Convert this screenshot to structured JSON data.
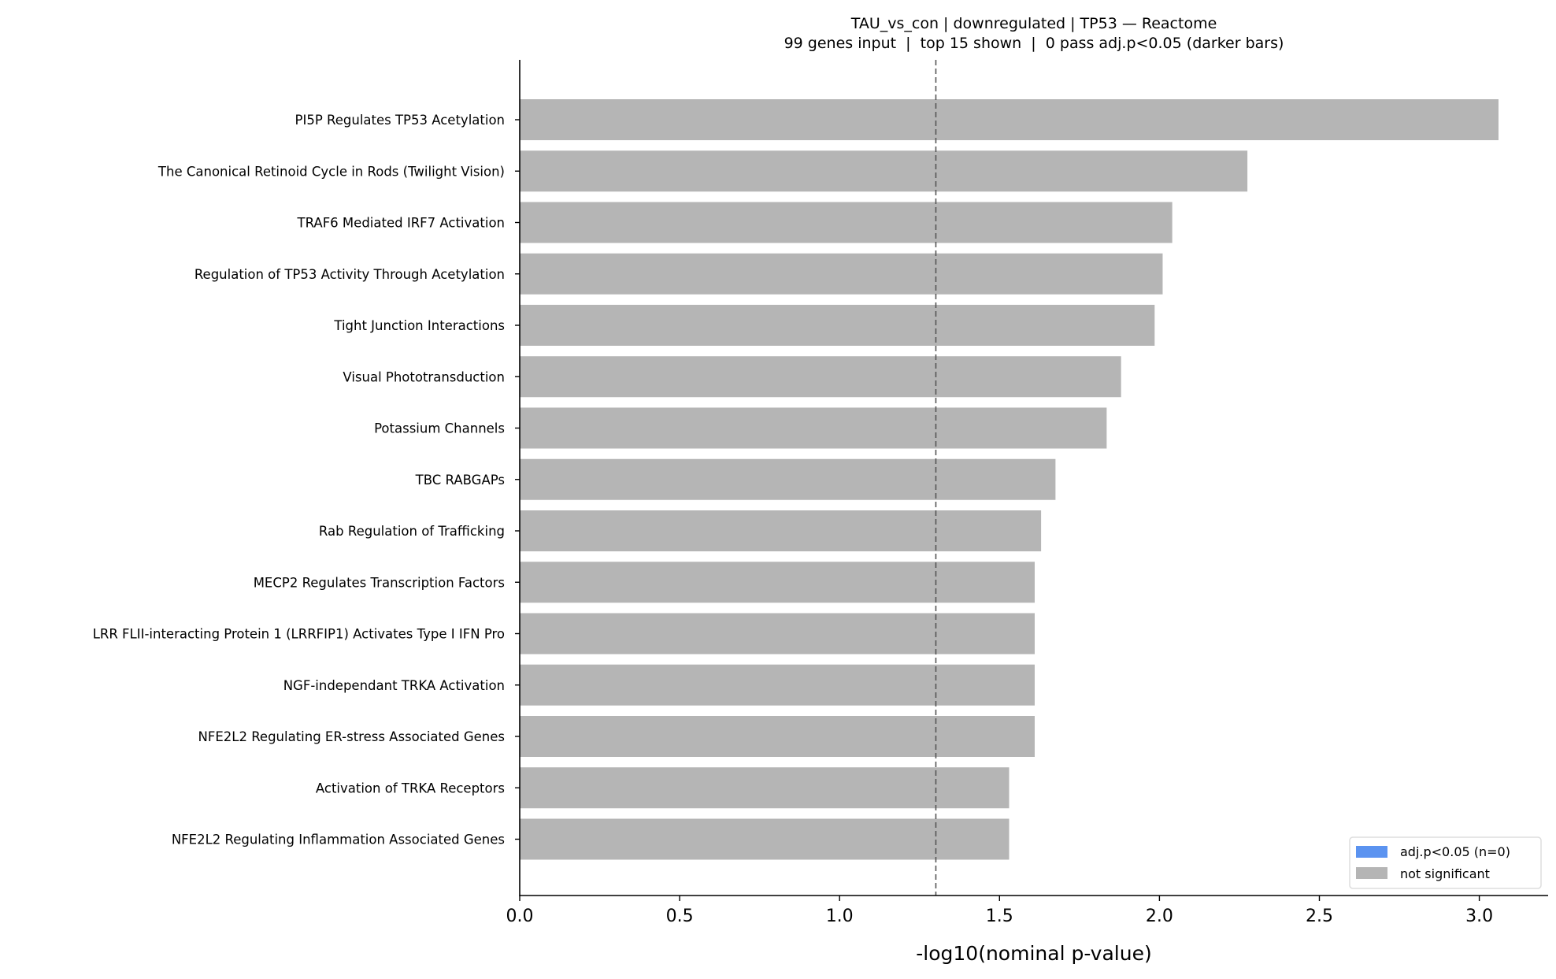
{
  "chart_data": {
    "type": "bar",
    "orientation": "horizontal",
    "title": "TAU_vs_con | downregulated | TP53 — Reactome",
    "subtitle": "99 genes input  |  top 15 shown  |  0 pass adj.p<0.05 (darker bars)",
    "xlabel": "-log10(nominal p-value)",
    "ylabel": "",
    "xlim": [
      0,
      3.22
    ],
    "xticks": [
      "0.0",
      "0.5",
      "1.0",
      "1.5",
      "2.0",
      "2.5",
      "3.0"
    ],
    "xtick_values": [
      0,
      0.5,
      1.0,
      1.5,
      2.0,
      2.5,
      3.0
    ],
    "threshold": 1.301,
    "threshold_style": "dashed",
    "grid": false,
    "categories": [
      "PI5P Regulates TP53 Acetylation",
      "The Canonical Retinoid Cycle in Rods (Twilight Vision)",
      "TRAF6 Mediated IRF7 Activation",
      "Regulation of TP53 Activity Through Acetylation",
      "Tight Junction Interactions",
      "Visual Phototransduction",
      "Potassium Channels",
      "TBC RABGAPs",
      "Rab Regulation of Trafficking",
      "MECP2 Regulates Transcription Factors",
      "LRR FLII-interacting Protein 1 (LRRFIP1) Activates Type I IFN Pro",
      "NGF-independant TRKA Activation",
      "NFE2L2 Regulating ER-stress Associated Genes",
      "Activation of TRKA Receptors",
      "NFE2L2 Regulating Inflammation Associated Genes"
    ],
    "values": [
      3.06,
      2.275,
      2.04,
      2.01,
      1.985,
      1.88,
      1.835,
      1.675,
      1.63,
      1.61,
      1.61,
      1.61,
      1.61,
      1.53,
      1.53
    ],
    "significant": [
      false,
      false,
      false,
      false,
      false,
      false,
      false,
      false,
      false,
      false,
      false,
      false,
      false,
      false,
      false
    ],
    "legend": {
      "placement": "lower-right",
      "entries": [
        {
          "label": "adj.p<0.05 (n=0)",
          "color": "#5b93f0"
        },
        {
          "label": "not significant",
          "color": "#b5b5b5"
        }
      ]
    },
    "colors": {
      "not_significant": "#b5b5b5",
      "significant": "#5b93f0",
      "threshold_line": "#555555"
    }
  }
}
